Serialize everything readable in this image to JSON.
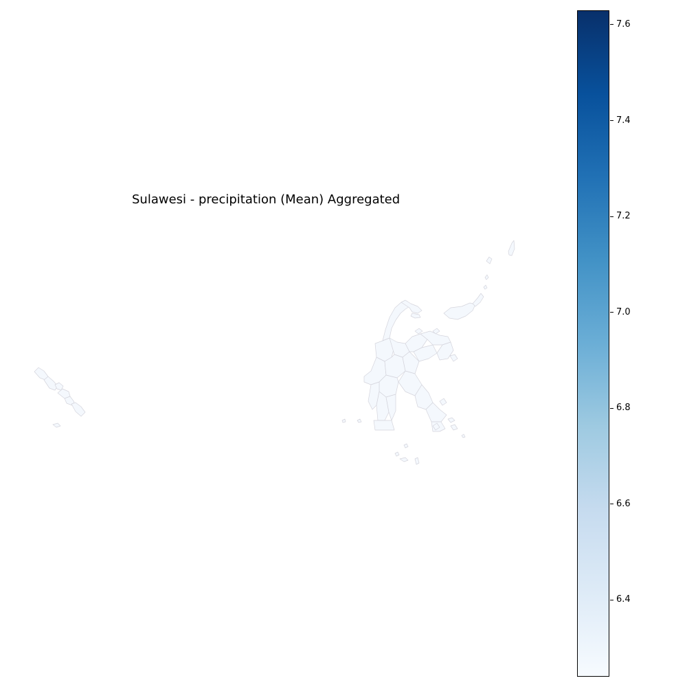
{
  "map": {
    "title": "Sulawesi - precipitation (Mean) Aggregated",
    "region_fill": "#f4f8fd",
    "region_stroke": "#d4d4dc"
  },
  "colorbar": {
    "colormap": "Blues",
    "min": 6.24,
    "max": 7.63,
    "low_color": "#f7fbff",
    "high_color": "#08306b",
    "ticks": [
      {
        "value": 7.6,
        "label": "7.6"
      },
      {
        "value": 7.4,
        "label": "7.4"
      },
      {
        "value": 7.2,
        "label": "7.2"
      },
      {
        "value": 7.0,
        "label": "7.0"
      },
      {
        "value": 6.8,
        "label": "6.8"
      },
      {
        "value": 6.6,
        "label": "6.6"
      },
      {
        "value": 6.4,
        "label": "6.4"
      }
    ]
  }
}
